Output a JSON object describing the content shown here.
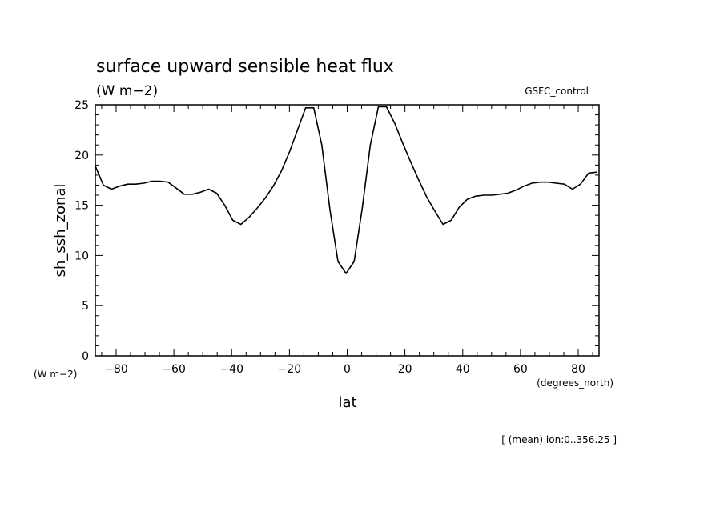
{
  "chart_data": {
    "type": "line",
    "title": "surface upward sensible heat flux",
    "subtitle": "(W m−2)",
    "run_label": "GSFC_control",
    "xlabel": "lat",
    "ylabel": "sh_ssh_zonal",
    "x_units": "(degrees_north)",
    "y_units": "(W m−2)",
    "footnote": "[ (mean) lon:0..356.25 ]",
    "xlim": [
      -87.2,
      87.2
    ],
    "ylim": [
      0,
      25
    ],
    "x_ticks": [
      -80,
      -60,
      -40,
      -20,
      0,
      20,
      40,
      60,
      80
    ],
    "y_ticks": [
      0,
      5,
      10,
      15,
      20,
      25
    ],
    "grid": false,
    "color": "#000000",
    "series": [
      {
        "x": [
          -87.2,
          -84.4,
          -81.6,
          -78.8,
          -76.0,
          -73.2,
          -70.4,
          -67.6,
          -64.8,
          -62.0,
          -59.2,
          -56.4,
          -53.6,
          -50.8,
          -48.0,
          -45.2,
          -42.4,
          -39.6,
          -36.8,
          -34.0,
          -31.2,
          -28.4,
          -25.6,
          -22.8,
          -20.0,
          -17.2,
          -14.4,
          -11.6,
          -8.8,
          -6.0,
          -3.2,
          -0.4,
          2.4,
          5.2,
          8.0,
          10.8,
          13.6,
          16.4,
          19.2,
          22.0,
          24.8,
          27.6,
          30.4,
          33.2,
          36.0,
          38.8,
          41.6,
          44.4,
          47.2,
          50.0,
          52.8,
          55.6,
          58.4,
          61.2,
          64.0,
          66.8,
          69.6,
          72.4,
          75.2,
          78.0,
          80.8,
          83.6,
          86.4
        ],
        "values": [
          18.9,
          17.0,
          16.6,
          16.9,
          17.1,
          17.1,
          17.2,
          17.4,
          17.4,
          17.3,
          16.7,
          16.1,
          16.1,
          16.3,
          16.6,
          16.2,
          15.0,
          13.5,
          13.1,
          13.8,
          14.7,
          15.7,
          16.9,
          18.4,
          20.3,
          22.5,
          24.7,
          24.7,
          21.0,
          14.6,
          9.4,
          8.2,
          9.4,
          14.7,
          21.0,
          24.8,
          24.8,
          23.2,
          21.2,
          19.3,
          17.5,
          15.8,
          14.4,
          13.1,
          13.5,
          14.8,
          15.6,
          15.9,
          16.0,
          16.0,
          16.1,
          16.2,
          16.5,
          16.9,
          17.2,
          17.3,
          17.3,
          17.2,
          17.1,
          16.6,
          17.1,
          18.2,
          18.3
        ]
      }
    ]
  }
}
